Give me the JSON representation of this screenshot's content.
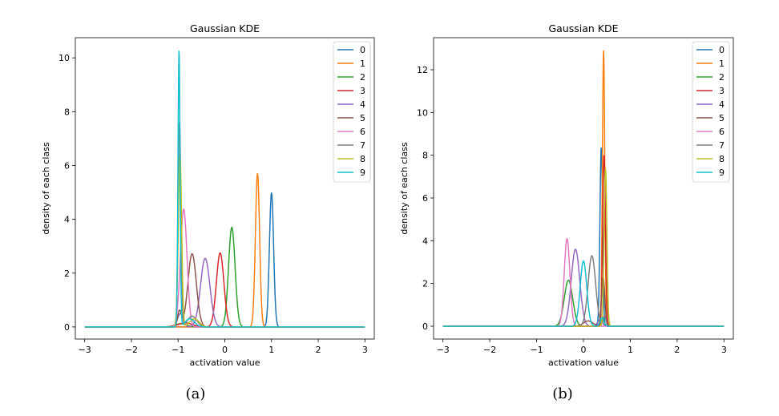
{
  "chart_data": [
    {
      "type": "line",
      "caption": "(a)",
      "title": "Gaussian KDE",
      "xlabel": "activation value",
      "ylabel": "density of each class",
      "xlim": [
        -3.2,
        3.2
      ],
      "ylim": [
        -0.45,
        10.75
      ],
      "xticks": [
        -3,
        -2,
        -1,
        0,
        1,
        2,
        3
      ],
      "xtick_labels": [
        "−3",
        "−2",
        "−1",
        "0",
        "1",
        "2",
        "3"
      ],
      "yticks": [
        0,
        2,
        4,
        6,
        8,
        10
      ],
      "ytick_labels": [
        "0",
        "2",
        "4",
        "6",
        "8",
        "10"
      ],
      "legend_position": "top-right",
      "grid": false,
      "series": [
        {
          "name": "0",
          "color": "#1f77b4",
          "peaks": [
            {
              "mu": 1.0,
              "sigma": 0.045,
              "height": 4.98
            }
          ]
        },
        {
          "name": "1",
          "color": "#ff7f0e",
          "peaks": [
            {
              "mu": 0.7,
              "sigma": 0.045,
              "height": 5.7
            }
          ]
        },
        {
          "name": "2",
          "color": "#2ca02c",
          "peaks": [
            {
              "mu": 0.15,
              "sigma": 0.07,
              "height": 3.7
            },
            {
              "mu": -0.95,
              "sigma": 0.12,
              "height": 0.12
            }
          ]
        },
        {
          "name": "3",
          "color": "#d62728",
          "peaks": [
            {
              "mu": -0.1,
              "sigma": 0.08,
              "height": 2.75
            },
            {
              "mu": -0.85,
              "sigma": 0.15,
              "height": 0.15
            }
          ]
        },
        {
          "name": "4",
          "color": "#9467bd",
          "peaks": [
            {
              "mu": -0.42,
              "sigma": 0.1,
              "height": 2.55
            },
            {
              "mu": -0.95,
              "sigma": 0.06,
              "height": 0.5
            }
          ]
        },
        {
          "name": "5",
          "color": "#8c564b",
          "peaks": [
            {
              "mu": -0.7,
              "sigma": 0.09,
              "height": 2.72
            },
            {
              "mu": -0.97,
              "sigma": 0.04,
              "height": 0.6
            }
          ]
        },
        {
          "name": "6",
          "color": "#e377c2",
          "peaks": [
            {
              "mu": -0.88,
              "sigma": 0.07,
              "height": 4.38
            }
          ]
        },
        {
          "name": "7",
          "color": "#7f7f7f",
          "peaks": [
            {
              "mu": -0.97,
              "sigma": 0.03,
              "height": 7.6
            },
            {
              "mu": -0.7,
              "sigma": 0.1,
              "height": 0.4
            }
          ]
        },
        {
          "name": "8",
          "color": "#bcbd22",
          "peaks": [
            {
              "mu": -0.96,
              "sigma": 0.035,
              "height": 6.4
            },
            {
              "mu": -0.65,
              "sigma": 0.1,
              "height": 0.3
            }
          ]
        },
        {
          "name": "9",
          "color": "#17becf",
          "peaks": [
            {
              "mu": -0.98,
              "sigma": 0.022,
              "height": 10.25
            },
            {
              "mu": -0.75,
              "sigma": 0.1,
              "height": 0.3
            }
          ]
        }
      ]
    },
    {
      "type": "line",
      "caption": "(b)",
      "title": "Gaussian KDE",
      "xlabel": "activation value",
      "ylabel": "density of each class",
      "xlim": [
        -3.2,
        3.2
      ],
      "ylim": [
        -0.6,
        13.5
      ],
      "xticks": [
        -3,
        -2,
        -1,
        0,
        1,
        2,
        3
      ],
      "xtick_labels": [
        "−3",
        "−2",
        "−1",
        "0",
        "1",
        "2",
        "3"
      ],
      "yticks": [
        0,
        2,
        4,
        6,
        8,
        10,
        12
      ],
      "ytick_labels": [
        "0",
        "2",
        "4",
        "6",
        "8",
        "10",
        "12"
      ],
      "legend_position": "top-right",
      "grid": false,
      "series": [
        {
          "name": "0",
          "color": "#1f77b4",
          "peaks": [
            {
              "mu": 0.38,
              "sigma": 0.028,
              "height": 8.35
            }
          ]
        },
        {
          "name": "1",
          "color": "#ff7f0e",
          "peaks": [
            {
              "mu": 0.43,
              "sigma": 0.025,
              "height": 12.9
            }
          ]
        },
        {
          "name": "2",
          "color": "#2ca02c",
          "peaks": [
            {
              "mu": -0.32,
              "sigma": 0.09,
              "height": 2.15
            },
            {
              "mu": 0.4,
              "sigma": 0.04,
              "height": 0.3
            }
          ]
        },
        {
          "name": "3",
          "color": "#d62728",
          "peaks": [
            {
              "mu": 0.44,
              "sigma": 0.03,
              "height": 8.0
            }
          ]
        },
        {
          "name": "4",
          "color": "#9467bd",
          "peaks": [
            {
              "mu": -0.17,
              "sigma": 0.09,
              "height": 3.6
            },
            {
              "mu": 0.35,
              "sigma": 0.05,
              "height": 0.3
            }
          ]
        },
        {
          "name": "5",
          "color": "#8c564b",
          "peaks": [
            {
              "mu": 0.42,
              "sigma": 0.035,
              "height": 2.3
            },
            {
              "mu": 0.1,
              "sigma": 0.1,
              "height": 0.25
            }
          ]
        },
        {
          "name": "6",
          "color": "#e377c2",
          "peaks": [
            {
              "mu": -0.35,
              "sigma": 0.06,
              "height": 4.1
            }
          ]
        },
        {
          "name": "7",
          "color": "#7f7f7f",
          "peaks": [
            {
              "mu": 0.18,
              "sigma": 0.08,
              "height": 3.3
            },
            {
              "mu": 0.45,
              "sigma": 0.03,
              "height": 0.5
            }
          ]
        },
        {
          "name": "8",
          "color": "#bcbd22",
          "peaks": [
            {
              "mu": 0.47,
              "sigma": 0.03,
              "height": 7.4
            }
          ]
        },
        {
          "name": "9",
          "color": "#17becf",
          "peaks": [
            {
              "mu": 0.0,
              "sigma": 0.07,
              "height": 3.05
            },
            {
              "mu": 0.4,
              "sigma": 0.04,
              "height": 0.4
            }
          ]
        }
      ]
    }
  ]
}
